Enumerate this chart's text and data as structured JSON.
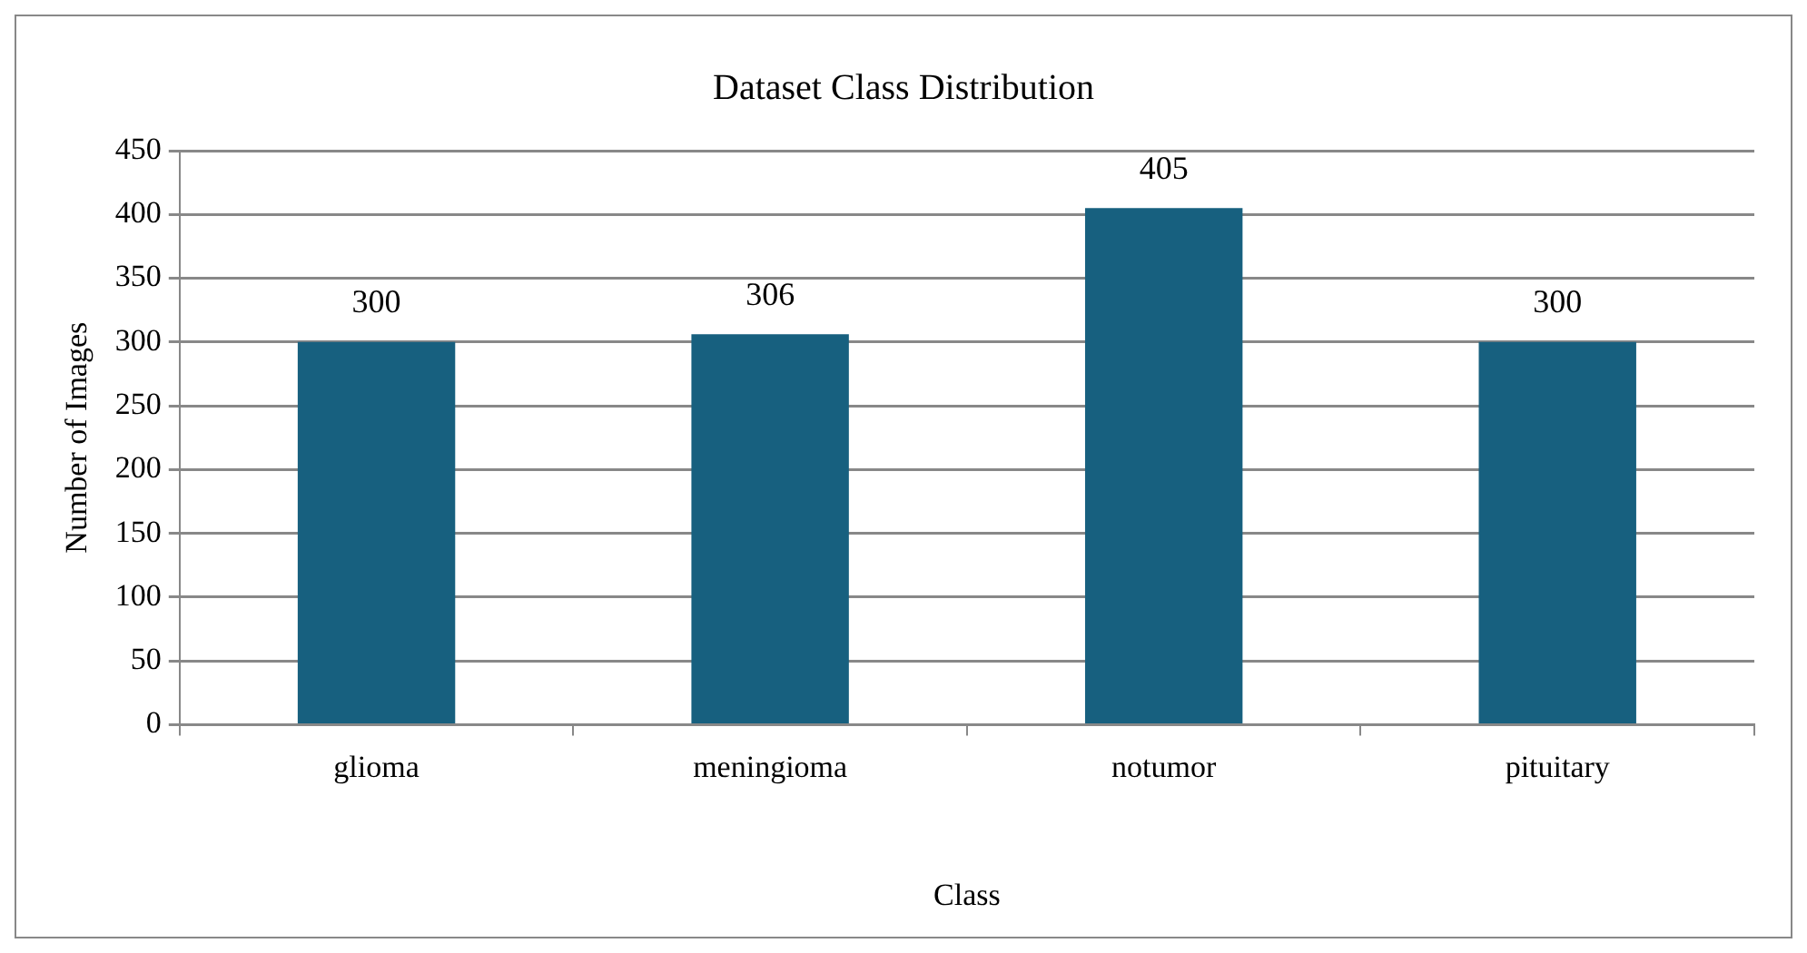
{
  "chart_data": {
    "type": "bar",
    "title": "Dataset Class Distribution",
    "xlabel": "Class",
    "ylabel": "Number of Images",
    "categories": [
      "glioma",
      "meningioma",
      "notumor",
      "pituitary"
    ],
    "values": [
      300,
      306,
      405,
      300
    ],
    "color": "#17607f",
    "ylim": [
      0,
      450
    ],
    "yticks": [
      0,
      50,
      100,
      150,
      200,
      250,
      300,
      350,
      400,
      450
    ],
    "grid": "y",
    "data_labels": true,
    "legend": false
  }
}
